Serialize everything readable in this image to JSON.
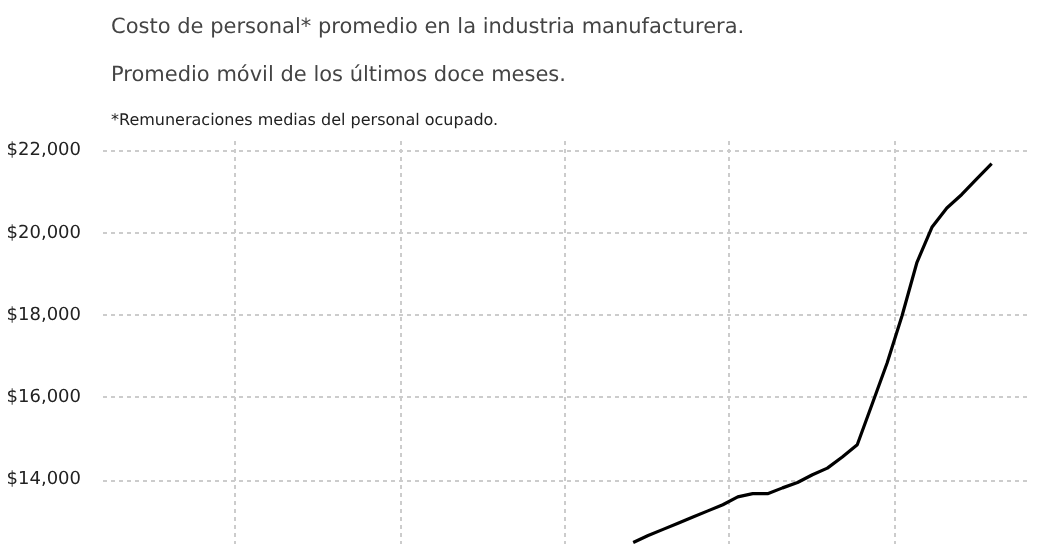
{
  "chart_data": {
    "type": "line",
    "title": "Costo de personal* promedio en la industria manufacturera.",
    "subtitle": "Promedio móvil de los últimos doce meses.",
    "annotations": [
      "*Remuneraciones medias del personal ocupado."
    ],
    "categories": [
      null,
      null,
      null,
      null,
      null,
      null,
      null,
      null,
      null,
      null,
      null,
      null,
      null,
      null,
      null,
      null,
      null,
      null,
      null,
      null,
      null,
      null,
      null,
      null,
      null,
      null,
      null,
      null,
      null,
      null,
      null,
      null,
      null,
      null,
      null,
      null,
      null,
      null,
      null,
      null,
      null,
      null,
      null,
      null,
      null,
      null,
      null,
      null,
      null,
      null,
      null,
      null,
      null,
      null,
      null,
      null,
      null,
      null,
      null,
      null,
      null,
      null
    ],
    "series": [
      {
        "color": "#000000",
        "values": [
          null,
          null,
          null,
          null,
          null,
          null,
          null,
          null,
          null,
          null,
          null,
          null,
          null,
          null,
          null,
          null,
          null,
          null,
          null,
          null,
          null,
          null,
          null,
          null,
          null,
          null,
          null,
          null,
          null,
          null,
          null,
          null,
          null,
          null,
          null,
          12480,
          12650,
          12800,
          12950,
          13100,
          13250,
          13400,
          13590,
          13670,
          13670,
          13810,
          13940,
          14130,
          14290,
          14560,
          14860,
          15850,
          16850,
          18000,
          19300,
          20150,
          20620,
          20950,
          21330,
          21700,
          null,
          null
        ]
      }
    ],
    "ylim": [
      12420,
      22300
    ],
    "yticks": [
      {
        "value": 14000,
        "label": "$14,000"
      },
      {
        "value": 16000,
        "label": "$16,000"
      },
      {
        "value": 18000,
        "label": "$18,000"
      },
      {
        "value": 20000,
        "label": "$20,000"
      },
      {
        "value": 22000,
        "label": "$22,000"
      }
    ],
    "grid": true,
    "tick_labels": "y",
    "line_style": "solid"
  }
}
